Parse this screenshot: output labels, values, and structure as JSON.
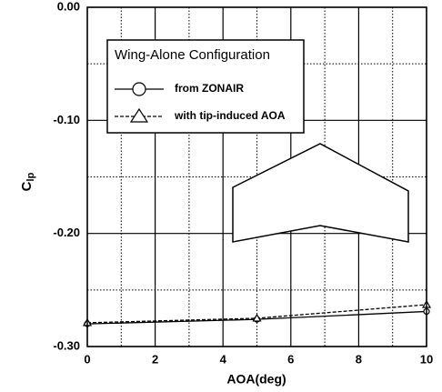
{
  "chart_data": {
    "type": "line",
    "xlabel": "AOA(deg)",
    "ylabel": {
      "main": "C",
      "sub": "lp"
    },
    "x": [
      0,
      5,
      10
    ],
    "series": [
      {
        "name": "from ZONAIR",
        "color": "#000000",
        "dash": "solid",
        "marker": "circle",
        "values": [
          -0.28,
          -0.276,
          -0.269
        ]
      },
      {
        "name": "with tip-induced AOA",
        "color": "#000000",
        "dash": "dashed",
        "marker": "triangle",
        "values": [
          -0.279,
          -0.275,
          -0.263
        ]
      }
    ],
    "legend_title": "Wing-Alone Configuration",
    "xlim": [
      0,
      10
    ],
    "xticks": [
      0,
      2,
      4,
      6,
      8,
      10
    ],
    "minor_xticks": [
      1,
      3,
      5,
      7,
      9
    ],
    "ylim": [
      -0.3,
      0
    ],
    "yticks": [
      {
        "value": 0,
        "label": "0.00"
      },
      {
        "value": -0.1,
        "label": "-0.10"
      },
      {
        "value": -0.2,
        "label": "-0.20"
      },
      {
        "value": -0.3,
        "label": "-0.30"
      }
    ],
    "minor_yticks": [
      -0.05,
      -0.15,
      -0.25
    ],
    "grid": true
  }
}
